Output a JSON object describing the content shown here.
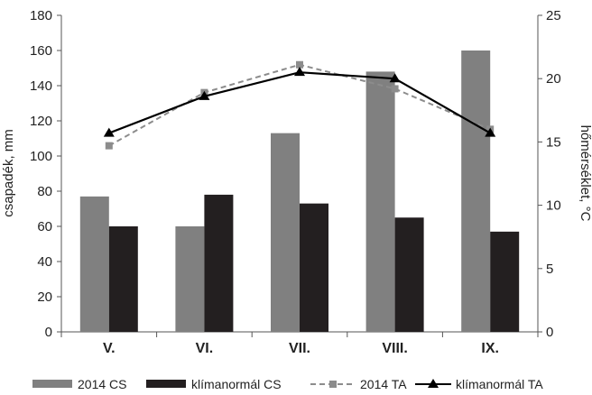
{
  "chart_data": {
    "type": "bar",
    "categories": [
      "V.",
      "VI.",
      "VII.",
      "VIII.",
      "IX."
    ],
    "ylabel_left": "csapadék, mm",
    "ylabel_right": "hőmérséklet, °C",
    "ylim_left": [
      0,
      180
    ],
    "yticks_left": [
      0,
      20,
      40,
      60,
      80,
      100,
      120,
      140,
      160,
      180
    ],
    "ylim_right": [
      0,
      25
    ],
    "yticks_right": [
      0,
      5,
      10,
      15,
      20,
      25
    ],
    "grid": false,
    "legend_position": "bottom",
    "bar_series": [
      {
        "name": "2014 CS",
        "axis": "left",
        "color": "#808080",
        "values": [
          77,
          60,
          113,
          148,
          160
        ]
      },
      {
        "name": "klímanormál CS",
        "axis": "left",
        "color": "#231f20",
        "values": [
          60,
          78,
          73,
          65,
          57
        ]
      }
    ],
    "line_series": [
      {
        "name": "2014 TA",
        "axis": "right",
        "color": "#8c8c8c",
        "dash": true,
        "marker": "square",
        "values": [
          14.7,
          18.9,
          21.1,
          19.2,
          16.0
        ]
      },
      {
        "name": "klímanormál TA",
        "axis": "right",
        "color": "#000000",
        "dash": false,
        "marker": "triangle",
        "values": [
          15.7,
          18.6,
          20.5,
          20.0,
          15.7
        ]
      }
    ]
  }
}
